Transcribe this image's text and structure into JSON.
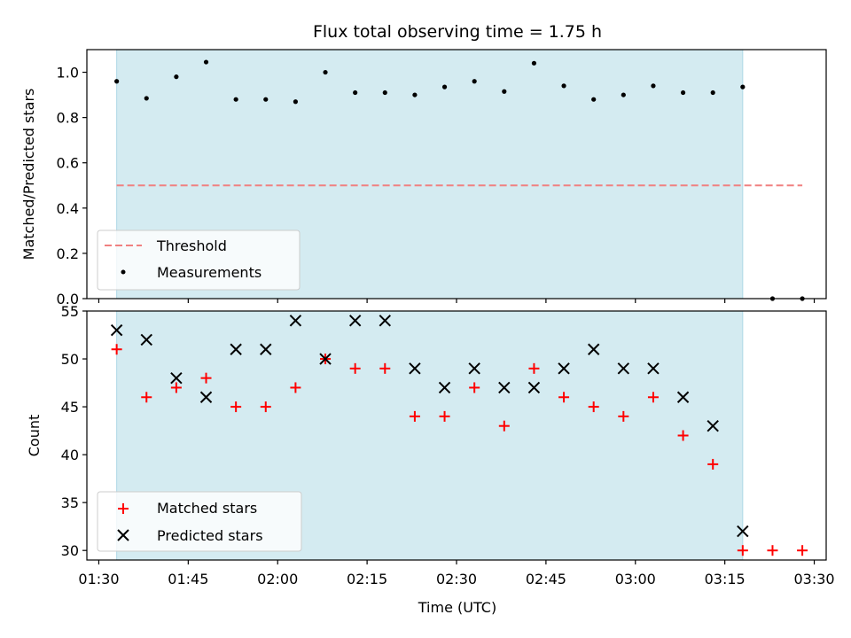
{
  "chart_data": [
    {
      "type": "scatter",
      "title": "Flux total observing time = 1.75 h",
      "xlabel": "",
      "ylabel": "Matched/Predicted stars",
      "ylim": [
        0.0,
        1.1
      ],
      "yticks": [
        0.0,
        0.2,
        0.4,
        0.6,
        0.8,
        1.0
      ],
      "shaded_span": [
        "01:33",
        "03:18"
      ],
      "legend_position": "lower-left",
      "threshold": {
        "name": "Threshold",
        "y": 0.5,
        "x_range": [
          "01:33",
          "03:28"
        ],
        "color": "#f08080"
      },
      "series": [
        {
          "name": "Measurements",
          "color": "#000000",
          "marker": "dot",
          "x": [
            "01:33",
            "01:38",
            "01:43",
            "01:48",
            "01:53",
            "01:58",
            "02:03",
            "02:08",
            "02:13",
            "02:18",
            "02:23",
            "02:28",
            "02:33",
            "02:38",
            "02:43",
            "02:48",
            "02:53",
            "02:58",
            "03:03",
            "03:08",
            "03:13",
            "03:18",
            "03:23",
            "03:28"
          ],
          "y": [
            0.96,
            0.885,
            0.98,
            1.045,
            0.88,
            0.88,
            0.87,
            1.0,
            0.91,
            0.91,
            0.9,
            0.935,
            0.96,
            0.915,
            1.04,
            0.94,
            0.88,
            0.9,
            0.94,
            0.91,
            0.91,
            0.935,
            0.0,
            0.0
          ]
        }
      ]
    },
    {
      "type": "scatter",
      "title": "",
      "xlabel": "Time (UTC)",
      "ylabel": "Count",
      "ylim": [
        29,
        55
      ],
      "yticks": [
        30,
        35,
        40,
        45,
        50,
        55
      ],
      "xlim": [
        "01:28",
        "03:32"
      ],
      "xticks": [
        "01:30",
        "01:45",
        "02:00",
        "02:15",
        "02:30",
        "02:45",
        "03:00",
        "03:15",
        "03:30"
      ],
      "shaded_span": [
        "01:33",
        "03:18"
      ],
      "legend_position": "lower-left",
      "series": [
        {
          "name": "Matched stars",
          "color": "#ff0000",
          "marker": "plus",
          "x": [
            "01:33",
            "01:38",
            "01:43",
            "01:48",
            "01:53",
            "01:58",
            "02:03",
            "02:08",
            "02:13",
            "02:18",
            "02:23",
            "02:28",
            "02:33",
            "02:38",
            "02:43",
            "02:48",
            "02:53",
            "02:58",
            "03:03",
            "03:08",
            "03:13",
            "03:18",
            "03:23",
            "03:28"
          ],
          "y": [
            51,
            46,
            47,
            48,
            45,
            45,
            47,
            50,
            49,
            49,
            44,
            44,
            47,
            43,
            49,
            46,
            45,
            44,
            46,
            42,
            39,
            30,
            30,
            30
          ]
        },
        {
          "name": "Predicted stars",
          "color": "#000000",
          "marker": "x",
          "x": [
            "01:33",
            "01:38",
            "01:43",
            "01:48",
            "01:53",
            "01:58",
            "02:03",
            "02:08",
            "02:13",
            "02:18",
            "02:23",
            "02:28",
            "02:33",
            "02:38",
            "02:43",
            "02:48",
            "02:53",
            "02:58",
            "03:03",
            "03:08",
            "03:13",
            "03:18"
          ],
          "y": [
            53,
            52,
            48,
            46,
            51,
            51,
            54,
            50,
            54,
            54,
            49,
            47,
            49,
            47,
            47,
            49,
            51,
            49,
            49,
            46,
            43,
            32
          ]
        }
      ]
    }
  ],
  "colors": {
    "span": "#d4ebf1",
    "span_edge": "#add8e6"
  }
}
